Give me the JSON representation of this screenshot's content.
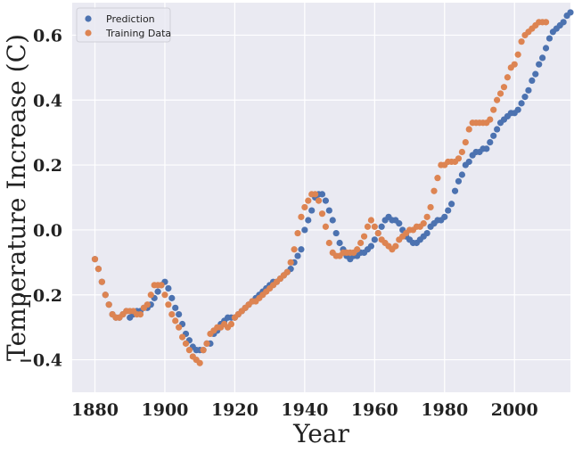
{
  "chart_data": {
    "type": "scatter",
    "xlabel": "Year",
    "ylabel": "Temperature Increase (C)",
    "xlim": [
      1873.5,
      2016
    ],
    "ylim": [
      -0.5,
      0.7
    ],
    "xticks": [
      1880,
      1900,
      1920,
      1940,
      1960,
      1980,
      2000
    ],
    "yticks": [
      -0.4,
      -0.2,
      0.0,
      0.2,
      0.4,
      0.6
    ],
    "xtick_labels": [
      "1880",
      "1900",
      "1920",
      "1940",
      "1960",
      "1980",
      "2000"
    ],
    "ytick_labels": [
      "−0.4",
      "−0.2",
      "0.0",
      "0.2",
      "0.4",
      "0.6"
    ],
    "grid": true,
    "background": "#eaeaf2",
    "legend_position": "top-left",
    "series": [
      {
        "name": "Prediction",
        "color": "#4c72b0",
        "x_start": 1880,
        "y": [
          -0.09,
          -0.12,
          -0.16,
          -0.2,
          -0.23,
          -0.26,
          -0.27,
          -0.27,
          -0.26,
          -0.25,
          -0.27,
          -0.26,
          -0.25,
          -0.25,
          -0.24,
          -0.24,
          -0.23,
          -0.21,
          -0.19,
          -0.17,
          -0.16,
          -0.18,
          -0.21,
          -0.24,
          -0.26,
          -0.29,
          -0.32,
          -0.34,
          -0.36,
          -0.37,
          -0.37,
          -0.37,
          -0.35,
          -0.35,
          -0.32,
          -0.31,
          -0.29,
          -0.28,
          -0.27,
          -0.27,
          -0.27,
          -0.26,
          -0.25,
          -0.24,
          -0.23,
          -0.22,
          -0.21,
          -0.2,
          -0.19,
          -0.18,
          -0.17,
          -0.16,
          -0.16,
          -0.15,
          -0.14,
          -0.13,
          -0.12,
          -0.1,
          -0.08,
          -0.06,
          0.0,
          0.03,
          0.06,
          0.1,
          0.11,
          0.11,
          0.09,
          0.06,
          0.03,
          -0.01,
          -0.04,
          -0.06,
          -0.08,
          -0.09,
          -0.08,
          -0.08,
          -0.07,
          -0.07,
          -0.06,
          -0.05,
          -0.03,
          -0.01,
          0.01,
          0.03,
          0.04,
          0.03,
          0.03,
          0.02,
          0.0,
          -0.02,
          -0.03,
          -0.04,
          -0.04,
          -0.03,
          -0.02,
          -0.01,
          0.01,
          0.02,
          0.03,
          0.03,
          0.04,
          0.06,
          0.08,
          0.12,
          0.15,
          0.17,
          0.2,
          0.21,
          0.23,
          0.24,
          0.24,
          0.25,
          0.25,
          0.27,
          0.29,
          0.31,
          0.33,
          0.34,
          0.35,
          0.36,
          0.36,
          0.37,
          0.39,
          0.41,
          0.43,
          0.46,
          0.48,
          0.51,
          0.53,
          0.56,
          0.59,
          0.61,
          0.62,
          0.63,
          0.64,
          0.66,
          0.67
        ]
      },
      {
        "name": "Training Data",
        "color": "#dd8452",
        "x_start": 1880,
        "y": [
          -0.09,
          -0.12,
          -0.16,
          -0.2,
          -0.23,
          -0.26,
          -0.27,
          -0.27,
          -0.26,
          -0.25,
          -0.25,
          -0.25,
          -0.26,
          -0.26,
          -0.24,
          -0.23,
          -0.2,
          -0.17,
          -0.17,
          -0.17,
          -0.2,
          -0.23,
          -0.26,
          -0.28,
          -0.3,
          -0.33,
          -0.35,
          -0.37,
          -0.39,
          -0.4,
          -0.41,
          -0.37,
          -0.35,
          -0.32,
          -0.31,
          -0.3,
          -0.3,
          -0.29,
          -0.3,
          -0.29,
          -0.27,
          -0.26,
          -0.25,
          -0.24,
          -0.23,
          -0.22,
          -0.22,
          -0.21,
          -0.2,
          -0.19,
          -0.18,
          -0.17,
          -0.16,
          -0.15,
          -0.14,
          -0.13,
          -0.1,
          -0.06,
          -0.01,
          0.04,
          0.07,
          0.09,
          0.11,
          0.11,
          0.09,
          0.05,
          0.01,
          -0.04,
          -0.07,
          -0.08,
          -0.08,
          -0.07,
          -0.07,
          -0.07,
          -0.07,
          -0.06,
          -0.04,
          -0.02,
          0.01,
          0.03,
          0.01,
          -0.01,
          -0.03,
          -0.04,
          -0.05,
          -0.06,
          -0.05,
          -0.03,
          -0.02,
          -0.01,
          0.0,
          0.0,
          0.01,
          0.01,
          0.02,
          0.04,
          0.07,
          0.12,
          0.16,
          0.2,
          0.2,
          0.21,
          0.21,
          0.21,
          0.22,
          0.24,
          0.27,
          0.31,
          0.33,
          0.33,
          0.33,
          0.33,
          0.33,
          0.34,
          0.37,
          0.4,
          0.42,
          0.44,
          0.47,
          0.5,
          0.51,
          0.54,
          0.58,
          0.6,
          0.61,
          0.62,
          0.63,
          0.64,
          0.64,
          0.64
        ]
      }
    ]
  }
}
